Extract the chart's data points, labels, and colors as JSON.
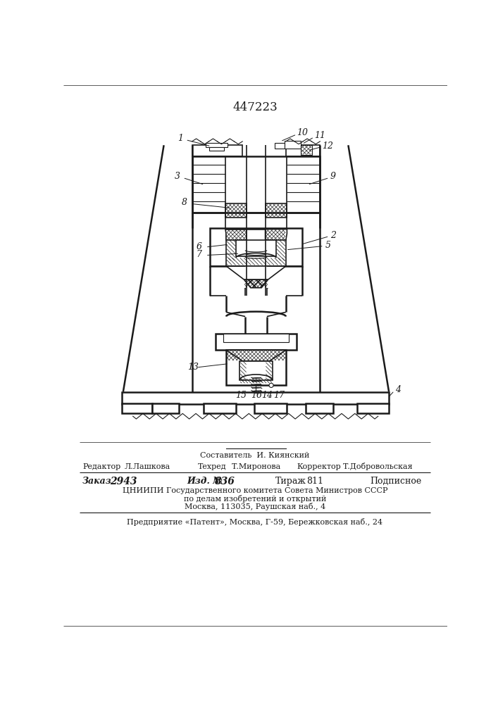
{
  "patent_number": "447223",
  "bg_color": "#ffffff",
  "line_color": "#1a1a1a",
  "footer": {
    "sestavitel": "Составитель  И. Киянский",
    "redaktor_label": "Редактор",
    "redaktor_name": "Л.Лашкова",
    "tehred_label": "Техред",
    "tehred_name": "Т.Миронова",
    "korrektor_label": "Корректор",
    "korrektor_name": "Т.Добровольская",
    "zakaz_label": "Заказ",
    "zakaz_val": "2943",
    "izd_label": "Изд. №",
    "izd_val": "836",
    "tirazh_label": "Тираж",
    "tirazh_val": "811",
    "podpisnoe": "Подписное",
    "cniipи": "ЦНИИПИ Государственного комитета Совета Министров СССР",
    "po_delam": "по делам изобретений и открытий",
    "moskva": "Москва, 113035, Раушская наб., 4",
    "predpriyatie": "Предприятие «Патент», Москва, Г-59, Бережковская наб., 24"
  }
}
